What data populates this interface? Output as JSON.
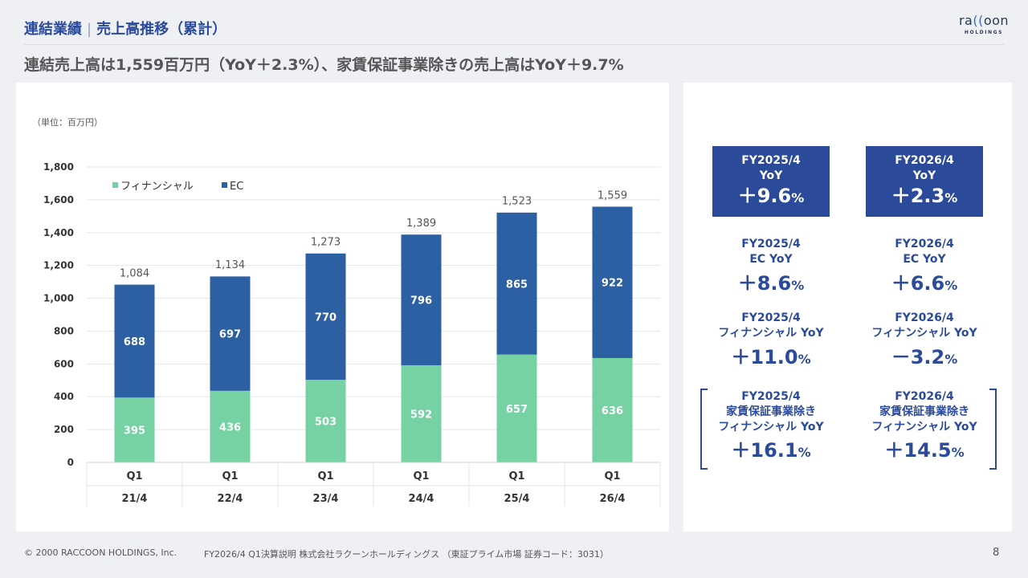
{
  "header": {
    "section": "連結業績",
    "separator": "|",
    "title": "売上高推移（累計）"
  },
  "logo": {
    "main_a": "ra",
    "main_b": "((",
    "main_c": "oon",
    "sub": "HOLDINGS"
  },
  "headline": "連結売上高は1,559百万円（YoY＋2.3%）、家賃保証事業除きの売上高はYoY＋9.7%",
  "chart_data": {
    "type": "bar",
    "stacked": true,
    "unit_label": "（単位：百万円）",
    "categories": [
      "Q1 21/4",
      "Q1 22/4",
      "Q1 23/4",
      "Q1 24/4",
      "Q1 25/4",
      "Q1 26/4"
    ],
    "category_lines": [
      [
        "Q1",
        "21/4"
      ],
      [
        "Q1",
        "22/4"
      ],
      [
        "Q1",
        "23/4"
      ],
      [
        "Q1",
        "24/4"
      ],
      [
        "Q1",
        "25/4"
      ],
      [
        "Q1",
        "26/4"
      ]
    ],
    "series": [
      {
        "name": "フィナンシャル",
        "color": "#76d1a3",
        "values": [
          395,
          436,
          503,
          592,
          657,
          636
        ]
      },
      {
        "name": "EC",
        "color": "#2d5fa3",
        "values": [
          688,
          697,
          770,
          796,
          865,
          922
        ]
      }
    ],
    "totals": [
      "1,084",
      "1,134",
      "1,273",
      "1,389",
      "1,523",
      "1,559"
    ],
    "total_values": [
      1084,
      1134,
      1273,
      1389,
      1523,
      1559
    ],
    "ylim": [
      0,
      1800
    ],
    "yticks": [
      "0",
      "200",
      "400",
      "600",
      "800",
      "1,000",
      "1,200",
      "1,400",
      "1,600",
      "1,800"
    ],
    "ytick_values": [
      0,
      200,
      400,
      600,
      800,
      1000,
      1200,
      1400,
      1600,
      1800
    ],
    "grid": true,
    "legend": "top-left"
  },
  "kpis": {
    "fy2025_total": {
      "l1": "FY2025/4",
      "l2": "YoY",
      "num": "＋9.6",
      "pct": "%"
    },
    "fy2026_total": {
      "l1": "FY2026/4",
      "l2": "YoY",
      "num": "＋2.3",
      "pct": "%"
    },
    "fy2025_ec": {
      "l1": "FY2025/4",
      "l2": "EC YoY",
      "num": "＋8.6",
      "pct": "%"
    },
    "fy2026_ec": {
      "l1": "FY2026/4",
      "l2": "EC YoY",
      "num": "＋6.6",
      "pct": "%"
    },
    "fy2025_fin": {
      "l1": "FY2025/4",
      "l2": "フィナンシャル YoY",
      "num": "＋11.0",
      "pct": "%"
    },
    "fy2026_fin": {
      "l1": "FY2026/4",
      "l2": "フィナンシャル YoY",
      "num": "－3.2",
      "pct": "%"
    },
    "fy2025_fin_ex": {
      "l1": "FY2025/4",
      "l2": "家賃保証事業除き",
      "l3": "フィナンシャル YoY",
      "num": "＋16.1",
      "pct": "%"
    },
    "fy2026_fin_ex": {
      "l1": "FY2026/4",
      "l2": "家賃保証事業除き",
      "l3": "フィナンシャル YoY",
      "num": "＋14.5",
      "pct": "%"
    }
  },
  "colors": {
    "accent": "#2b4a9a",
    "financial": "#76d1a3",
    "ec": "#2d5fa3"
  },
  "footer": {
    "copyright": "© 2000 RACCOON HOLDINGS, Inc.",
    "doc": "FY2026/4 Q1決算説明 株式会社ラクーンホールディングス （東証プライム市場 証券コード：3031）",
    "page": "8"
  }
}
